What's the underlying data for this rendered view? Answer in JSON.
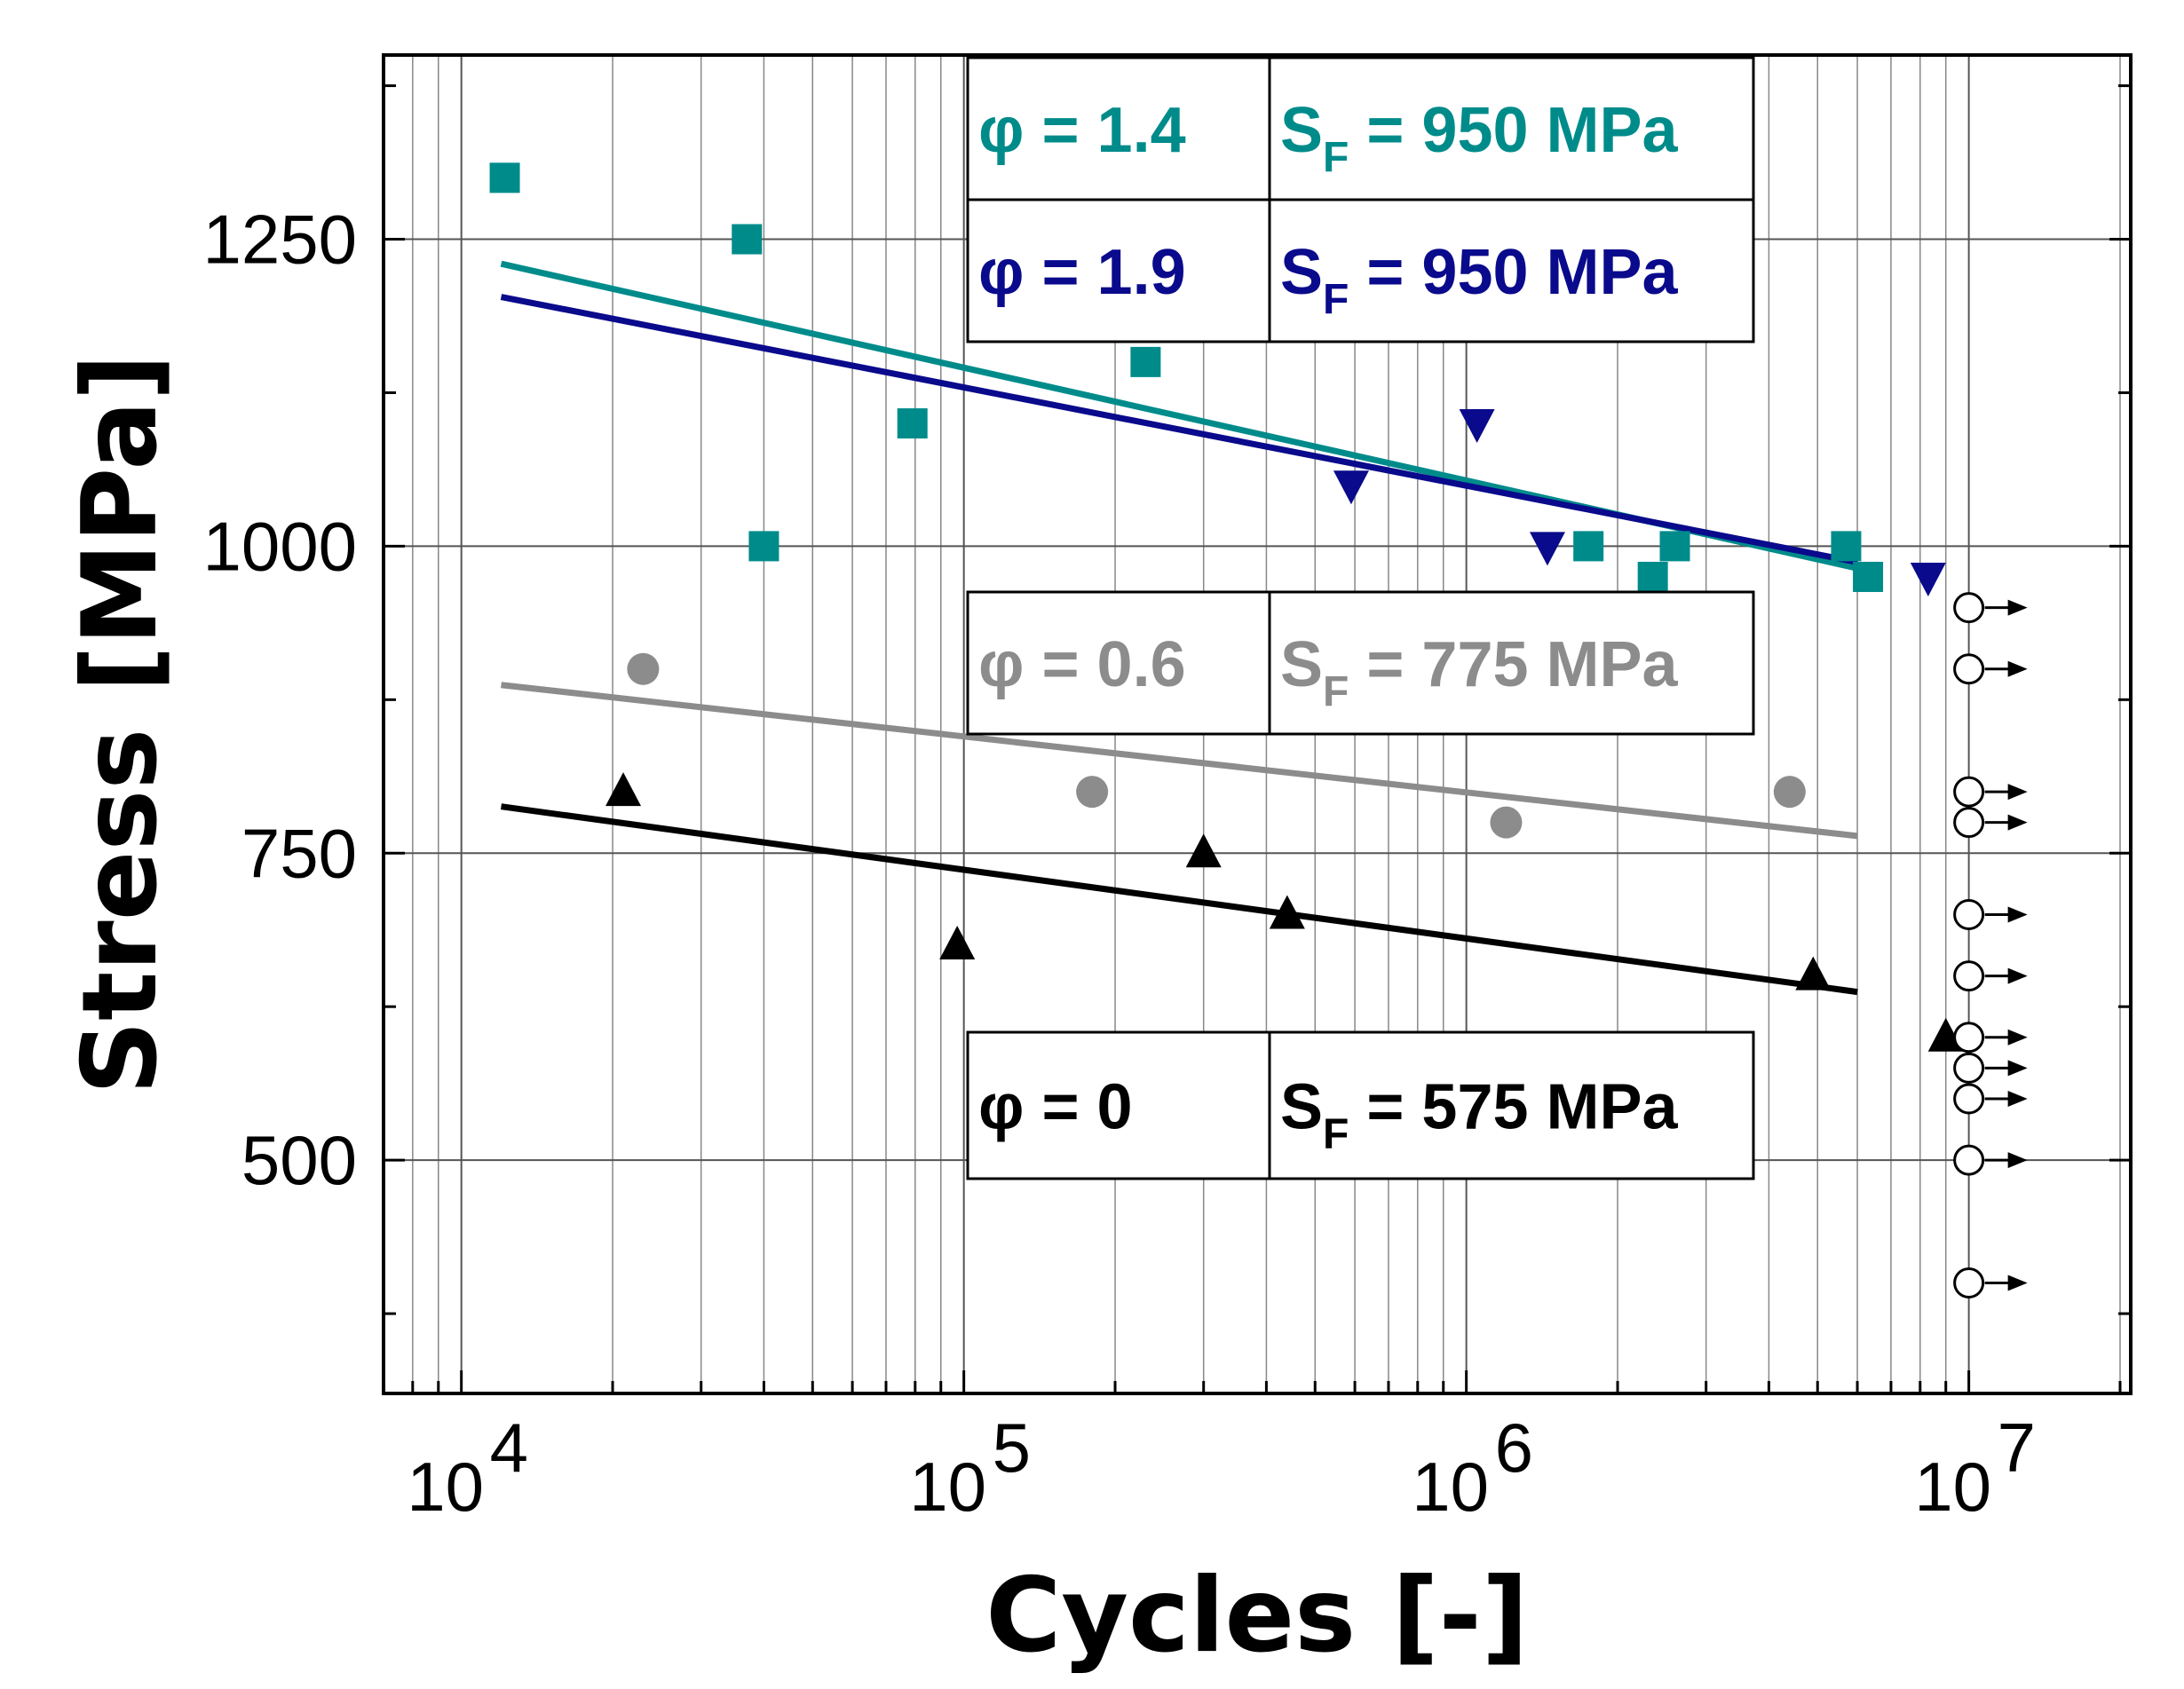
{
  "chart_data": {
    "type": "scatter",
    "xscale": "log",
    "xlabel": "Cycles [-]",
    "ylabel": "Stress [MPa]",
    "xlim": [
      7000,
      21000000
    ],
    "ylim": [
      310,
      1400
    ],
    "x_ticks": [
      {
        "value": 10000,
        "base": "10",
        "exp": "4"
      },
      {
        "value": 100000,
        "base": "10",
        "exp": "5"
      },
      {
        "value": 1000000,
        "base": "10",
        "exp": "6"
      },
      {
        "value": 10000000,
        "base": "10",
        "exp": "7"
      }
    ],
    "y_ticks": [
      500,
      750,
      1000,
      1250
    ],
    "y_minor_ticks": [
      375,
      625,
      875,
      1125,
      1375
    ],
    "grid": true,
    "series": [
      {
        "name": "φ = 1.4",
        "phi_label": "φ = 1.4",
        "sf_label": "S",
        "sf_sub": "F",
        "sf_value": " = 950 MPa",
        "color": "#008b8b",
        "marker": "square",
        "points": [
          [
            12200,
            1300
          ],
          [
            37000,
            1250
          ],
          [
            40000,
            1000
          ],
          [
            79000,
            1100
          ],
          [
            230000,
            1150
          ],
          [
            1750000,
            1000
          ],
          [
            2350000,
            975
          ],
          [
            2600000,
            1000
          ],
          [
            5700000,
            1000
          ],
          [
            6300000,
            975
          ]
        ],
        "fit": [
          [
            12000,
            1230
          ],
          [
            6000000,
            982
          ]
        ]
      },
      {
        "name": "φ = 1.9",
        "phi_label": "φ = 1.9",
        "sf_label": "S",
        "sf_sub": "F",
        "sf_value": " = 950 MPa",
        "color": "#0a0a8c",
        "marker": "triangle-down",
        "points": [
          [
            590000,
            1050
          ],
          [
            1050000,
            1100
          ],
          [
            1450000,
            1000
          ],
          [
            8300000,
            975
          ]
        ],
        "fit": [
          [
            12000,
            1203
          ],
          [
            6000000,
            987
          ]
        ]
      },
      {
        "name": "φ = 0.6",
        "phi_label": "φ = 0.6",
        "sf_label": "S",
        "sf_sub": "F",
        "sf_value": " = 775 MPa",
        "color": "#8c8c8c",
        "marker": "circle",
        "points": [
          [
            23000,
            900
          ],
          [
            180000,
            800
          ],
          [
            1200000,
            775
          ],
          [
            4400000,
            800
          ]
        ],
        "fit": [
          [
            12000,
            887
          ],
          [
            6000000,
            764
          ]
        ]
      },
      {
        "name": "φ = 0",
        "phi_label": "φ = 0",
        "sf_label": "S",
        "sf_sub": "F",
        "sf_value": " = 575 MPa",
        "color": "#000000",
        "marker": "triangle-up",
        "points": [
          [
            21000,
            800
          ],
          [
            97000,
            675
          ],
          [
            300000,
            750
          ],
          [
            440000,
            700
          ],
          [
            4900000,
            650
          ],
          [
            9000000,
            600
          ]
        ],
        "fit": [
          [
            12000,
            788
          ],
          [
            6000000,
            637
          ]
        ]
      }
    ],
    "runouts": {
      "x": 10000000,
      "marker": "open-circle-arrow",
      "stresses": [
        950,
        900,
        800,
        775,
        700,
        650,
        600,
        575,
        550,
        500,
        400
      ]
    }
  }
}
